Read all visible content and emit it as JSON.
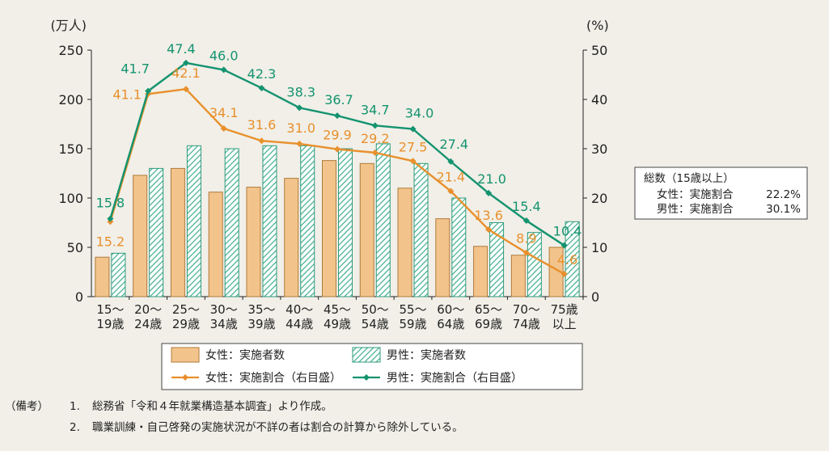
{
  "chart_data": {
    "type": "bar",
    "categories": [
      [
        "15～",
        "19歳"
      ],
      [
        "20～",
        "24歳"
      ],
      [
        "25～",
        "29歳"
      ],
      [
        "30～",
        "34歳"
      ],
      [
        "35～",
        "39歳"
      ],
      [
        "40～",
        "44歳"
      ],
      [
        "45～",
        "49歳"
      ],
      [
        "50～",
        "54歳"
      ],
      [
        "55～",
        "59歳"
      ],
      [
        "60～",
        "64歳"
      ],
      [
        "65～",
        "69歳"
      ],
      [
        "70～",
        "74歳"
      ],
      [
        "75歳",
        "以上"
      ]
    ],
    "left_unit": "(万人)",
    "right_unit": "(%)",
    "ylim_left": [
      0,
      250
    ],
    "ylim_right": [
      0,
      50
    ],
    "left_ticks": [
      0,
      50,
      100,
      150,
      200,
      250
    ],
    "right_ticks": [
      0,
      10,
      20,
      30,
      40,
      50
    ],
    "grid": false,
    "legend_placement": "bottom-center",
    "series": [
      {
        "name": "女性：実施者数",
        "kind": "bar",
        "axis": "left",
        "color": "#f2c48c",
        "stroke": "#b07a3a",
        "values": [
          40,
          123,
          130,
          106,
          111,
          120,
          138,
          135,
          110,
          79,
          51,
          42,
          50
        ]
      },
      {
        "name": "男性：実施者数",
        "kind": "bar",
        "axis": "left",
        "color": "#bfe0d4",
        "stroke": "#2e9a7c",
        "pattern": "hatch",
        "values": [
          44,
          130,
          153,
          150,
          153,
          153,
          150,
          155,
          135,
          100,
          75,
          65,
          76
        ]
      },
      {
        "name": "女性：実施割合（右目盛）",
        "kind": "line",
        "axis": "right",
        "color": "#e8902c",
        "values": [
          15.2,
          41.1,
          42.1,
          34.1,
          31.6,
          31.0,
          29.9,
          29.2,
          27.5,
          21.4,
          13.6,
          8.9,
          4.6
        ],
        "labels": [
          "15.2",
          "41.1",
          "42.1",
          "34.1",
          "31.6",
          "31.0",
          "29.9",
          "29.2",
          "27.5",
          "21.4",
          "13.6",
          "8.9",
          "4.6"
        ]
      },
      {
        "name": "男性：実施割合（右目盛）",
        "kind": "line",
        "axis": "right",
        "color": "#14936f",
        "values": [
          15.8,
          41.7,
          47.4,
          46.0,
          42.3,
          38.3,
          36.7,
          34.7,
          34.0,
          27.4,
          21.0,
          15.4,
          10.4
        ],
        "labels": [
          "15.8",
          "41.7",
          "47.4",
          "46.0",
          "42.3",
          "38.3",
          "36.7",
          "34.7",
          "34.0",
          "27.4",
          "21.0",
          "15.4",
          "10.4"
        ]
      }
    ],
    "summary_box": {
      "title": "総数（15歳以上）",
      "rows": [
        {
          "label": "女性：実施割合",
          "value": "22.2%"
        },
        {
          "label": "男性：実施割合",
          "value": "30.1%"
        }
      ]
    }
  },
  "notes": {
    "tag": "（備考）",
    "items": [
      {
        "num": "1.",
        "text": "総務省「令和４年就業構造基本調査」より作成。"
      },
      {
        "num": "2.",
        "text": "職業訓練・自己啓発の実施状況が不詳の者は割合の計算から除外している。"
      }
    ]
  }
}
